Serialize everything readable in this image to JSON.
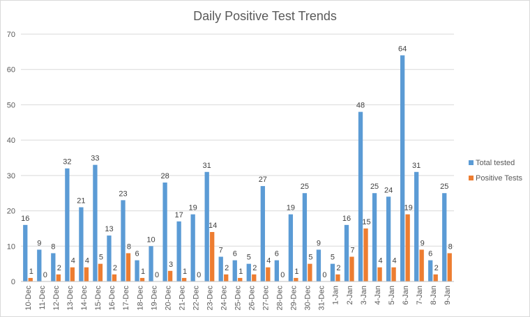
{
  "chart_data": {
    "type": "bar",
    "title": "Daily Positive Test Trends",
    "xlabel": "",
    "ylabel": "",
    "ylim": [
      0,
      70
    ],
    "yticks": [
      0,
      10,
      20,
      30,
      40,
      50,
      60,
      70
    ],
    "grid": true,
    "legend_position": "right",
    "categories": [
      "10-Dec",
      "11-Dec",
      "12-Dec",
      "13-Dec",
      "14-Dec",
      "15-Dec",
      "16-Dec",
      "17-Dec",
      "18-Dec",
      "19-Dec",
      "20-Dec",
      "21-Dec",
      "22-Dec",
      "23-Dec",
      "24-Dec",
      "25-Dec",
      "26-Dec",
      "27-Dec",
      "28-Dec",
      "29-Dec",
      "30-Dec",
      "31-Dec",
      "1-Jan",
      "2-Jan",
      "3-Jan",
      "4-Jan",
      "5-Jan",
      "6-Jan",
      "7-Jan",
      "8-Jan",
      "9-Jan"
    ],
    "series": [
      {
        "name": "Total tested",
        "color": "#5b9bd5",
        "values": [
          16,
          9,
          8,
          32,
          21,
          33,
          13,
          23,
          6,
          10,
          28,
          17,
          19,
          31,
          7,
          6,
          5,
          27,
          6,
          19,
          25,
          9,
          5,
          16,
          48,
          25,
          24,
          64,
          31,
          6,
          25
        ],
        "labels": [
          "16",
          "9",
          "8",
          "32",
          "21",
          "33",
          "13",
          "23",
          "6",
          "10",
          "28",
          "17",
          "19",
          "31",
          "7",
          "6",
          "5",
          "27",
          "6",
          "19",
          "25",
          "9",
          "5",
          "16",
          "48",
          "25",
          "24",
          "64",
          "31",
          "6",
          "25"
        ]
      },
      {
        "name": "Positive Tests",
        "color": "#ed7d31",
        "values": [
          1,
          0,
          2,
          4,
          4,
          5,
          2,
          8,
          1,
          0,
          3,
          1,
          0,
          14,
          2,
          1,
          2,
          4,
          0,
          1,
          5,
          0,
          2,
          7,
          15,
          4,
          4,
          19,
          9,
          2,
          8
        ],
        "labels": [
          "1",
          "0",
          "2",
          "4",
          "4",
          "5",
          "2",
          "8",
          "1",
          "0",
          "3",
          "1",
          "0",
          "14",
          "2",
          "1",
          "2",
          "4",
          "0",
          "1",
          "5",
          "0",
          "2",
          "7",
          "15",
          "4",
          "4",
          "19",
          "9",
          "2",
          "8"
        ]
      }
    ]
  }
}
